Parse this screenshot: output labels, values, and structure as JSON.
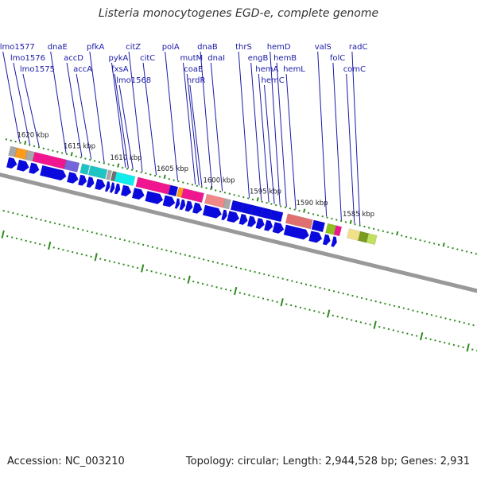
{
  "title": "Listeria monocytogenes EGD-e, complete genome",
  "accession_label": "Accession: NC_003210",
  "topology_label": "Topology: circular; Length: 2,944,528 bp; Genes: 2,931",
  "colors": {
    "label_text": "#1a1aa6",
    "tick": "#2e8b1e",
    "kbp_text": "#222222",
    "backbone": "#999999",
    "strand_arrow": "#0a0adc",
    "red_marker": "#dd1111"
  },
  "kbp_ticks": [
    {
      "label": "1620 kbp",
      "pos": 1620
    },
    {
      "label": "1615 kbp",
      "pos": 1615
    },
    {
      "label": "1610 kbp",
      "pos": 1610
    },
    {
      "label": "1605 kbp",
      "pos": 1605
    },
    {
      "label": "1600 kbp",
      "pos": 1600
    },
    {
      "label": "1595 kbp",
      "pos": 1595
    },
    {
      "label": "1590 kbp",
      "pos": 1590
    },
    {
      "label": "1585 kbp",
      "pos": 1585
    }
  ],
  "gene_labels": [
    {
      "name": "lmo1577",
      "pos": 1620.6
    },
    {
      "name": "lmo1576",
      "pos": 1619.5
    },
    {
      "name": "lmo1575",
      "pos": 1618.5
    },
    {
      "name": "dnaE",
      "pos": 1615.6
    },
    {
      "name": "accA",
      "pos": 1612.9
    },
    {
      "name": "accD",
      "pos": 1613.9
    },
    {
      "name": "pfkA",
      "pos": 1611.5
    },
    {
      "name": "pykA",
      "pos": 1609.2
    },
    {
      "name": "fxsA",
      "pos": 1608.9
    },
    {
      "name": "lmo1568",
      "pos": 1608.4
    },
    {
      "name": "citZ",
      "pos": 1607.4
    },
    {
      "name": "citC",
      "pos": 1605.9
    },
    {
      "name": "polA",
      "pos": 1603.6
    },
    {
      "name": "coaE",
      "pos": 1601.3
    },
    {
      "name": "nrdR",
      "pos": 1601.0
    },
    {
      "name": "mutM",
      "pos": 1601.7
    },
    {
      "name": "dnaB",
      "pos": 1599.9
    },
    {
      "name": "dnaI",
      "pos": 1598.8
    },
    {
      "name": "thrS",
      "pos": 1595.9
    },
    {
      "name": "engB",
      "pos": 1594.6
    },
    {
      "name": "hemC",
      "pos": 1593.2
    },
    {
      "name": "hemA",
      "pos": 1593.8
    },
    {
      "name": "hemD",
      "pos": 1592.6
    },
    {
      "name": "hemB",
      "pos": 1591.9
    },
    {
      "name": "hemL",
      "pos": 1590.9
    },
    {
      "name": "valS",
      "pos": 1587.6
    },
    {
      "name": "folC",
      "pos": 1586.0
    },
    {
      "name": "comC",
      "pos": 1584.6
    },
    {
      "name": "radC",
      "pos": 1584.0
    }
  ],
  "top_blocks": [
    {
      "start": 1621.4,
      "end": 1620.7,
      "color": "#a8a8a8"
    },
    {
      "start": 1620.7,
      "end": 1619.6,
      "color": "#ff9a1a"
    },
    {
      "start": 1619.6,
      "end": 1618.8,
      "color": "#a8a8a8"
    },
    {
      "start": 1618.8,
      "end": 1615.4,
      "color": "#f0168f"
    },
    {
      "start": 1615.4,
      "end": 1614.0,
      "color": "#7466d8"
    },
    {
      "start": 1613.7,
      "end": 1612.9,
      "color": "#1ec4c4"
    },
    {
      "start": 1612.8,
      "end": 1611.0,
      "color": "#1ec4c4"
    },
    {
      "start": 1610.9,
      "end": 1610.5,
      "color": "#a8a8a8"
    },
    {
      "start": 1610.4,
      "end": 1610.0,
      "color": "#707070"
    },
    {
      "start": 1610.0,
      "end": 1608.0,
      "color": "#10ecec"
    },
    {
      "start": 1607.7,
      "end": 1604.2,
      "color": "#f0168f"
    },
    {
      "start": 1604.2,
      "end": 1603.4,
      "color": "#0a0adc"
    },
    {
      "start": 1603.3,
      "end": 1602.8,
      "color": "#ff9a1a"
    },
    {
      "start": 1602.8,
      "end": 1601.5,
      "color": "#f0168f"
    },
    {
      "start": 1601.5,
      "end": 1600.6,
      "color": "#f0168f"
    },
    {
      "start": 1600.3,
      "end": 1598.3,
      "color": "#f08888"
    },
    {
      "start": 1598.3,
      "end": 1597.7,
      "color": "#a8a8a8"
    },
    {
      "start": 1597.5,
      "end": 1596.4,
      "color": "#0a0adc"
    },
    {
      "start": 1596.4,
      "end": 1595.3,
      "color": "#0a0adc"
    },
    {
      "start": 1595.3,
      "end": 1594.2,
      "color": "#0a0adc"
    },
    {
      "start": 1594.2,
      "end": 1593.3,
      "color": "#0a0adc"
    },
    {
      "start": 1593.3,
      "end": 1592.1,
      "color": "#0a0adc"
    },
    {
      "start": 1591.6,
      "end": 1588.9,
      "color": "#e07070"
    },
    {
      "start": 1588.8,
      "end": 1587.6,
      "color": "#0a0adc"
    },
    {
      "start": 1587.3,
      "end": 1586.4,
      "color": "#90c020"
    },
    {
      "start": 1586.4,
      "end": 1585.8,
      "color": "#f0168f"
    },
    {
      "start": 1585.0,
      "end": 1583.8,
      "color": "#f0e08a"
    },
    {
      "start": 1583.8,
      "end": 1582.9,
      "color": "#7a9a20"
    },
    {
      "start": 1582.9,
      "end": 1582.0,
      "color": "#c0e060"
    }
  ],
  "forward_arrows": [
    {
      "start": 1621.3,
      "end": 1620.3
    },
    {
      "start": 1620.2,
      "end": 1619.0
    },
    {
      "start": 1618.9,
      "end": 1617.9
    },
    {
      "start": 1617.7,
      "end": 1615.0
    },
    {
      "start": 1614.8,
      "end": 1613.7
    },
    {
      "start": 1613.6,
      "end": 1612.8
    },
    {
      "start": 1612.7,
      "end": 1612.0
    },
    {
      "start": 1611.8,
      "end": 1610.8
    },
    {
      "start": 1610.7,
      "end": 1610.3
    },
    {
      "start": 1610.2,
      "end": 1609.8
    },
    {
      "start": 1609.7,
      "end": 1609.2
    },
    {
      "start": 1609.0,
      "end": 1608.0
    },
    {
      "start": 1607.8,
      "end": 1606.6
    },
    {
      "start": 1606.4,
      "end": 1604.6
    },
    {
      "start": 1604.5,
      "end": 1603.3
    },
    {
      "start": 1603.2,
      "end": 1602.8
    },
    {
      "start": 1602.7,
      "end": 1602.2
    },
    {
      "start": 1602.1,
      "end": 1601.4
    },
    {
      "start": 1601.3,
      "end": 1600.4
    },
    {
      "start": 1600.2,
      "end": 1598.3
    },
    {
      "start": 1598.2,
      "end": 1597.7
    },
    {
      "start": 1597.6,
      "end": 1596.4
    },
    {
      "start": 1596.3,
      "end": 1595.5
    },
    {
      "start": 1595.4,
      "end": 1594.6
    },
    {
      "start": 1594.5,
      "end": 1593.7
    },
    {
      "start": 1593.6,
      "end": 1592.8
    },
    {
      "start": 1592.7,
      "end": 1591.6
    },
    {
      "start": 1591.5,
      "end": 1588.9
    },
    {
      "start": 1588.8,
      "end": 1587.5
    },
    {
      "start": 1587.3,
      "end": 1586.6
    },
    {
      "start": 1586.4,
      "end": 1585.9
    }
  ]
}
